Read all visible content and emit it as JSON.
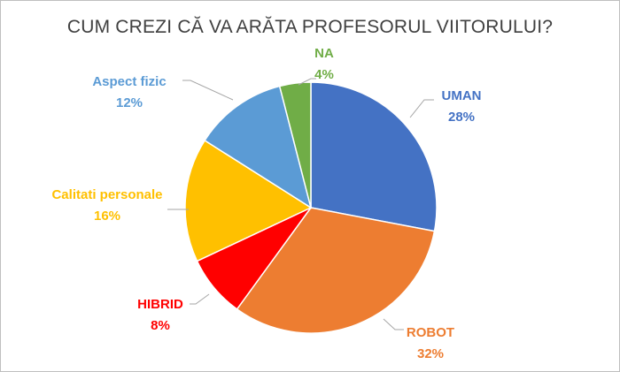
{
  "chart_data": {
    "type": "pie",
    "title": "CUM CREZI CĂ VA ARĂTA PROFESORUL VIITORULUI?",
    "slices": [
      {
        "label": "UMAN",
        "value": 28,
        "value_label": "28%",
        "color": "#4472C4"
      },
      {
        "label": "ROBOT",
        "value": 32,
        "value_label": "32%",
        "color": "#ED7D31"
      },
      {
        "label": "HIBRID",
        "value": 8,
        "value_label": "8%",
        "color": "#FF0000"
      },
      {
        "label": "Calitati personale",
        "value": 16,
        "value_label": "16%",
        "color": "#FFC000"
      },
      {
        "label": "Aspect fizic",
        "value": 12,
        "value_label": "12%",
        "color": "#5B9BD5"
      },
      {
        "label": "NA",
        "value": 4,
        "value_label": "4%",
        "color": "#70AD47"
      }
    ],
    "legend": "none",
    "start_angle": "top, clockwise"
  }
}
